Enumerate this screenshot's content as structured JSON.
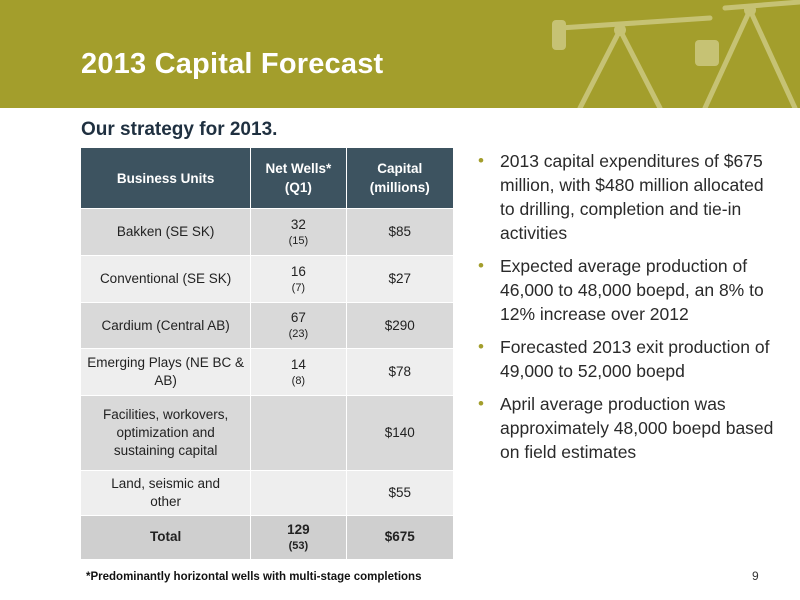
{
  "slide": {
    "title": "2013 Capital Forecast",
    "subtitle": "Our strategy for 2013.",
    "accent_color": "#a39e2c",
    "table_header_color": "#3d5360",
    "page_number": "9",
    "footnote": "*Predominantly horizontal wells with multi-stage completions"
  },
  "table": {
    "headers": [
      "Business Units",
      "Net Wells* (Q1)",
      "Capital (millions)"
    ],
    "rows": [
      {
        "unit": "Bakken (SE SK)",
        "wells": "32",
        "wells_q1": "(15)",
        "capital": "$85"
      },
      {
        "unit": "Conventional (SE SK)",
        "wells": "16",
        "wells_q1": "(7)",
        "capital": "$27"
      },
      {
        "unit": "Cardium (Central AB)",
        "wells": "67",
        "wells_q1": "(23)",
        "capital": "$290"
      },
      {
        "unit": "Emerging Plays (NE BC & AB)",
        "wells": "14",
        "wells_q1": "(8)",
        "capital": "$78"
      },
      {
        "unit": "Facilities, workovers, optimization and sustaining capital",
        "wells": "",
        "wells_q1": "",
        "capital": "$140"
      },
      {
        "unit": "Land, seismic and other",
        "wells": "",
        "wells_q1": "",
        "capital": "$55"
      }
    ],
    "total": {
      "unit": "Total",
      "wells": "129",
      "wells_q1": "(53)",
      "capital": "$675"
    }
  },
  "bullets": [
    "2013 capital expenditures of $675 million, with $480 million allocated to drilling, completion and tie-in activities",
    "Expected average production of 46,000 to 48,000 boepd, an 8% to 12% increase over 2012",
    "Forecasted 2013 exit production of 49,000 to 52,000 boepd",
    "April average production was approximately 48,000 boepd based on field estimates"
  ]
}
